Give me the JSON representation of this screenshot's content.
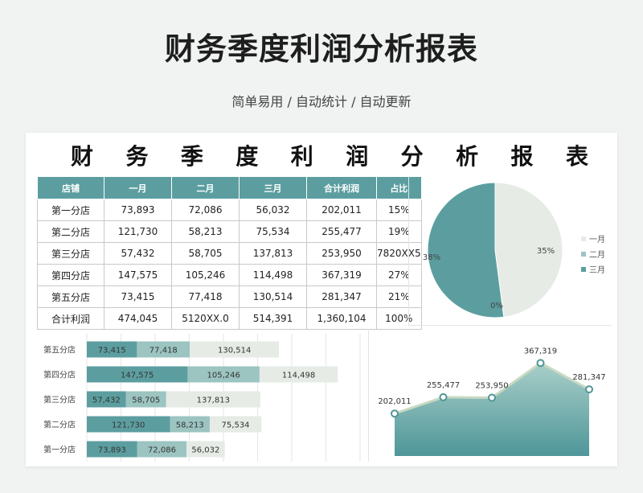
{
  "header": {
    "title": "财务季度利润分析报表",
    "subtitle": "简单易用 / 自动统计 / 自动更新"
  },
  "sheet": {
    "title_chars": [
      "财",
      "务",
      "季",
      "度",
      "利",
      "润",
      "分",
      "析",
      "报",
      "表"
    ]
  },
  "table": {
    "headers": [
      "店铺",
      "一月",
      "二月",
      "三月",
      "合计利润",
      "占比"
    ],
    "rows": [
      [
        "第一分店",
        "73,893",
        "72,086",
        "56,032",
        "202,011",
        "15%"
      ],
      [
        "第二分店",
        "121,730",
        "58,213",
        "75,534",
        "255,477",
        "19%"
      ],
      [
        "第三分店",
        "57,432",
        "58,705",
        "137,813",
        "253,950",
        "7820XX5"
      ],
      [
        "第四分店",
        "147,575",
        "105,246",
        "114,498",
        "367,319",
        "27%"
      ],
      [
        "第五分店",
        "73,415",
        "77,418",
        "130,514",
        "281,347",
        "21%"
      ],
      [
        "合计利润",
        "474,045",
        "5120XX.0",
        "514,391",
        "1,360,104",
        "100%"
      ]
    ]
  },
  "colors": {
    "accent": "#5c9ea0",
    "mid": "#9cc4c1",
    "light": "#e6ebe6"
  },
  "chart_data": [
    {
      "type": "pie",
      "categories": [
        "一月",
        "二月",
        "三月"
      ],
      "values": [
        35,
        0,
        38
      ],
      "labels": [
        "35%",
        "0%",
        "38%"
      ],
      "legend": "right",
      "colors": [
        "#e6ebe6",
        "#9cc4c1",
        "#5c9ea0"
      ]
    },
    {
      "type": "bar",
      "orientation": "horizontal",
      "stacked": true,
      "categories": [
        "第五分店",
        "第四分店",
        "第三分店",
        "第二分店",
        "第一分店"
      ],
      "series": [
        {
          "values": [
            73415,
            147575,
            57432,
            121730,
            73893
          ]
        },
        {
          "values": [
            77418,
            105246,
            58705,
            58213,
            72086
          ]
        },
        {
          "values": [
            130514,
            114498,
            137813,
            75534,
            56032
          ]
        }
      ],
      "labels": [
        [
          "73,415",
          "147,575",
          "57,432",
          "121,730",
          "73,893"
        ],
        [
          "77,418",
          "105,246",
          "58,705",
          "58,213",
          "72,086"
        ],
        [
          "130,514",
          "114,498",
          "137,813",
          "75,534",
          "56,032"
        ]
      ],
      "colors": [
        "#5c9ea0",
        "#9cc4c1",
        "#e6ebe6"
      ],
      "xlim": [
        0,
        400000
      ]
    },
    {
      "type": "area",
      "values": [
        202011,
        255477,
        253950,
        367319,
        281347
      ],
      "labels": [
        "202,011",
        "255,477",
        "253,950",
        "367,319",
        "281,347"
      ],
      "ylim": [
        150000,
        400000
      ]
    }
  ]
}
